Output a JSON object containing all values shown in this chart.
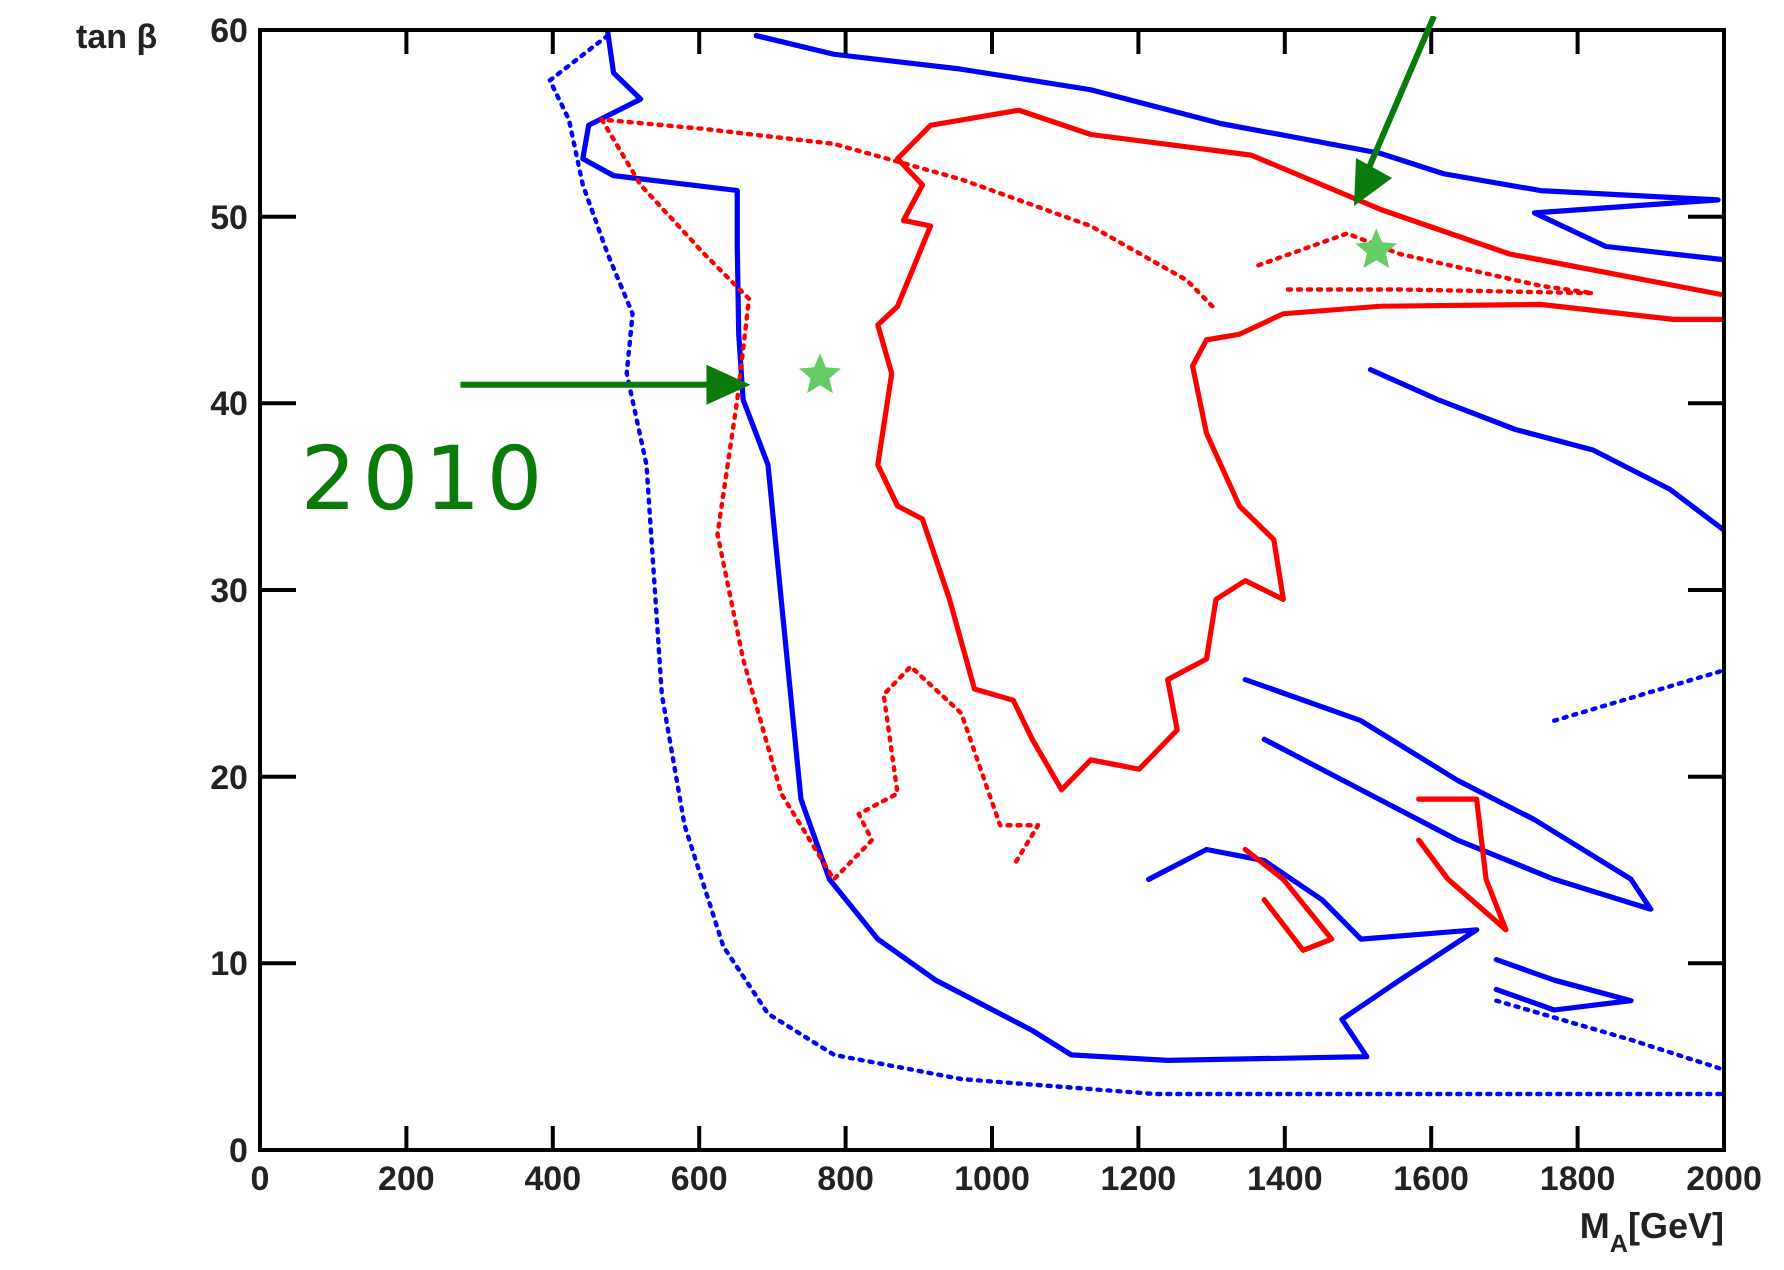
{
  "chart_data": {
    "type": "line",
    "xlabel": "M$_{A}$[GeV]",
    "ylabel": "tan β",
    "xlim": [
      0,
      2000
    ],
    "ylim": [
      0,
      60
    ],
    "xticks": [
      0,
      200,
      400,
      600,
      800,
      1000,
      1200,
      1400,
      1600,
      1800,
      2000
    ],
    "yticks": [
      0,
      10,
      20,
      30,
      40,
      50,
      60
    ],
    "grid": false,
    "marker": "none",
    "series": [
      {
        "color": "#0000ff",
        "line_style": "solid",
        "x": [
          475,
          483,
          520,
          449,
          441,
          483,
          652,
          652,
          654,
          660,
          694,
          712,
          739,
          778,
          844,
          923,
          1055,
          1108,
          1240,
          1512,
          1478,
          1557,
          1662,
          1504,
          1451,
          1372,
          1293,
          1214
        ],
        "values": [
          59.9,
          57.7,
          56.3,
          54.9,
          53.1,
          52.2,
          51.4,
          48.4,
          43.7,
          40.2,
          36.7,
          29.5,
          18.8,
          14.5,
          11.3,
          9.1,
          6.4,
          5.1,
          4.8,
          5.0,
          7.0,
          9.1,
          11.8,
          11.3,
          13.4,
          15.5,
          16.1,
          14.5
        ]
      },
      {
        "color": "#0000ff",
        "line_style": "solid",
        "x": [
          678,
          784,
          958,
          1135,
          1311,
          1530,
          1617,
          1749,
          1992,
          1741,
          1839,
          1999
        ],
        "values": [
          59.7,
          58.7,
          57.9,
          56.8,
          55.0,
          53.4,
          52.3,
          51.4,
          50.9,
          50.2,
          48.4,
          47.7
        ]
      },
      {
        "color": "#0000ff",
        "line_style": "solid",
        "x": [
          1517,
          1609,
          1715,
          1821,
          1926,
          2000
        ],
        "values": [
          41.8,
          40.2,
          38.6,
          37.5,
          35.4,
          33.2
        ]
      },
      {
        "color": "#0000ff",
        "line_style": "solid",
        "x": [
          1346,
          1504,
          1636,
          1741,
          1873,
          1900,
          1768,
          1636,
          1504,
          1372
        ],
        "values": [
          25.2,
          23.0,
          19.8,
          17.7,
          14.5,
          12.9,
          14.5,
          16.6,
          19.3,
          22.0
        ]
      },
      {
        "color": "#0000ff",
        "line_style": "solid",
        "x": [
          1689,
          1768,
          1873,
          1768,
          1689
        ],
        "values": [
          10.2,
          9.1,
          8.0,
          7.5,
          8.6
        ]
      },
      {
        "color": "#0000ff",
        "line_style": "dotted",
        "x": [
          475,
          396,
          422,
          441,
          475,
          509,
          501,
          528,
          549,
          580,
          633,
          694,
          784,
          958,
          1222,
          1749,
          2000
        ],
        "values": [
          59.7,
          57.3,
          55.2,
          51.7,
          48.0,
          44.8,
          41.6,
          36.7,
          24.4,
          17.4,
          10.9,
          7.3,
          5.1,
          3.8,
          3.0,
          3.0,
          3.0
        ]
      },
      {
        "color": "#0000ff",
        "line_style": "dotted",
        "x": [
          1689,
          1873,
          2000
        ],
        "values": [
          8.0,
          5.9,
          4.3
        ]
      },
      {
        "color": "#0000ff",
        "line_style": "dotted",
        "x": [
          1768,
          2000
        ],
        "values": [
          23.0,
          25.7
        ]
      },
      {
        "color": "#ff0000",
        "line_style": "solid",
        "x": [
          2000,
          1931,
          1749,
          1530,
          1398,
          1338,
          1293,
          1274,
          1293,
          1338,
          1385,
          1398,
          1346,
          1306,
          1293,
          1240,
          1253,
          1201,
          1135,
          1095,
          1055,
          1029,
          976,
          942,
          905,
          871,
          844,
          863,
          844,
          871,
          916,
          879,
          905,
          871,
          916,
          1037,
          1135,
          1354,
          1530,
          1707,
          2000
        ],
        "values": [
          44.5,
          44.5,
          45.3,
          45.2,
          44.8,
          43.7,
          43.4,
          42.0,
          38.4,
          34.5,
          32.7,
          29.5,
          30.5,
          29.5,
          26.3,
          25.2,
          22.5,
          20.4,
          20.9,
          19.3,
          22.0,
          24.1,
          24.7,
          29.5,
          33.8,
          34.5,
          36.7,
          41.6,
          44.2,
          45.2,
          49.5,
          49.8,
          51.7,
          53.1,
          54.9,
          55.7,
          54.4,
          53.3,
          50.4,
          48.0,
          45.8
        ]
      },
      {
        "color": "#ff0000",
        "line_style": "solid",
        "x": [
          1583,
          1662,
          1675,
          1702,
          1623,
          1583
        ],
        "values": [
          18.8,
          18.8,
          14.5,
          11.8,
          14.5,
          16.6
        ]
      },
      {
        "color": "#ff0000",
        "line_style": "solid",
        "x": [
          1346,
          1398,
          1464,
          1425,
          1372
        ],
        "values": [
          16.1,
          14.5,
          11.3,
          10.7,
          13.4
        ]
      },
      {
        "color": "#ff0000",
        "line_style": "dotted",
        "x": [
          1301,
          1266,
          1135,
          958,
          784,
          607,
          467,
          520,
          607,
          668,
          652,
          625,
          660,
          712,
          784,
          836,
          818,
          871,
          852,
          889,
          958,
          1011,
          1063,
          1029
        ],
        "values": [
          45.2,
          46.6,
          49.5,
          52.0,
          53.9,
          54.7,
          55.2,
          51.7,
          48.0,
          45.6,
          40.2,
          33.0,
          26.3,
          19.1,
          14.5,
          16.6,
          18.0,
          19.1,
          24.4,
          25.9,
          23.4,
          17.4,
          17.4,
          15.2
        ]
      },
      {
        "color": "#ff0000",
        "line_style": "dotted",
        "x": [
          1364,
          1485,
          1557,
          1749,
          1821,
          1557,
          1398
        ],
        "values": [
          47.4,
          49.1,
          48.0,
          46.3,
          45.9,
          46.1,
          46.1
        ]
      },
      {
        "type": "scatter",
        "color": "#66cc66",
        "marker": "star",
        "x": [
          765
        ],
        "values": [
          41.5
        ]
      },
      {
        "type": "scatter",
        "color": "#66cc66",
        "marker": "star",
        "x": [
          1525
        ],
        "values": [
          48.2
        ]
      }
    ],
    "annotations": [
      {
        "text": "2010",
        "x": 670,
        "y": 41
      }
    ]
  }
}
